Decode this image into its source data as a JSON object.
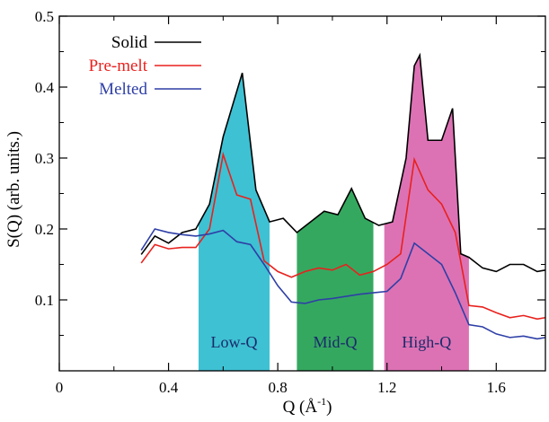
{
  "chart_data": {
    "type": "line",
    "xlabel": "Q (Å",
    "xlabel_sup": "-1",
    "xlabel_close": ")",
    "ylabel": "S(Q) (arb. units.)",
    "xlim": [
      0,
      1.78
    ],
    "ylim": [
      0,
      0.5
    ],
    "xticks": [
      0,
      0.4,
      0.8,
      1.2,
      1.6
    ],
    "xtick_labels": [
      "0",
      "0.4",
      "0.8",
      "1.2",
      "1.6"
    ],
    "yticks": [
      0.1,
      0.2,
      0.3,
      0.4,
      0.5
    ],
    "ytick_labels": [
      "0.1",
      "0.2",
      "0.3",
      "0.4",
      "0.5"
    ],
    "legend_position": "top-left",
    "regions": [
      {
        "label": "Low-Q",
        "x_range": [
          0.51,
          0.77
        ],
        "color": "#3ec1d3"
      },
      {
        "label": "Mid-Q",
        "x_range": [
          0.87,
          1.15
        ],
        "color": "#35a860"
      },
      {
        "label": "High-Q",
        "x_range": [
          1.19,
          1.5
        ],
        "color": "#dc72b4"
      }
    ],
    "series": [
      {
        "name": "Solid",
        "color": "#000000",
        "x": [
          0.3,
          0.35,
          0.4,
          0.45,
          0.5,
          0.55,
          0.6,
          0.67,
          0.72,
          0.77,
          0.82,
          0.87,
          0.92,
          0.97,
          1.02,
          1.07,
          1.12,
          1.17,
          1.22,
          1.27,
          1.3,
          1.32,
          1.35,
          1.4,
          1.44,
          1.47,
          1.5,
          1.55,
          1.6,
          1.65,
          1.7,
          1.75,
          1.78
        ],
        "y": [
          0.164,
          0.19,
          0.18,
          0.195,
          0.2,
          0.235,
          0.33,
          0.42,
          0.255,
          0.21,
          0.215,
          0.195,
          0.21,
          0.225,
          0.22,
          0.257,
          0.215,
          0.205,
          0.21,
          0.3,
          0.43,
          0.445,
          0.325,
          0.325,
          0.37,
          0.165,
          0.16,
          0.145,
          0.14,
          0.15,
          0.15,
          0.14,
          0.142
        ]
      },
      {
        "name": "Pre-melt",
        "color": "#e8211d",
        "x": [
          0.3,
          0.35,
          0.4,
          0.45,
          0.5,
          0.55,
          0.6,
          0.65,
          0.7,
          0.75,
          0.8,
          0.85,
          0.9,
          0.95,
          1.0,
          1.05,
          1.1,
          1.15,
          1.2,
          1.25,
          1.3,
          1.35,
          1.4,
          1.45,
          1.5,
          1.55,
          1.6,
          1.65,
          1.7,
          1.75,
          1.78
        ],
        "y": [
          0.152,
          0.178,
          0.172,
          0.174,
          0.174,
          0.2,
          0.305,
          0.248,
          0.242,
          0.155,
          0.14,
          0.132,
          0.14,
          0.145,
          0.142,
          0.15,
          0.135,
          0.14,
          0.15,
          0.165,
          0.298,
          0.255,
          0.235,
          0.195,
          0.092,
          0.09,
          0.082,
          0.075,
          0.078,
          0.073,
          0.075
        ]
      },
      {
        "name": "Melted",
        "color": "#2e3fa6",
        "x": [
          0.3,
          0.35,
          0.4,
          0.45,
          0.5,
          0.55,
          0.6,
          0.65,
          0.7,
          0.75,
          0.8,
          0.85,
          0.9,
          0.95,
          1.0,
          1.05,
          1.1,
          1.15,
          1.2,
          1.25,
          1.3,
          1.35,
          1.4,
          1.45,
          1.5,
          1.55,
          1.6,
          1.65,
          1.7,
          1.75,
          1.78
        ],
        "y": [
          0.17,
          0.2,
          0.195,
          0.192,
          0.19,
          0.193,
          0.198,
          0.182,
          0.178,
          0.15,
          0.12,
          0.097,
          0.095,
          0.1,
          0.102,
          0.105,
          0.108,
          0.11,
          0.112,
          0.13,
          0.18,
          0.165,
          0.15,
          0.11,
          0.065,
          0.062,
          0.052,
          0.047,
          0.049,
          0.045,
          0.047
        ]
      }
    ]
  }
}
